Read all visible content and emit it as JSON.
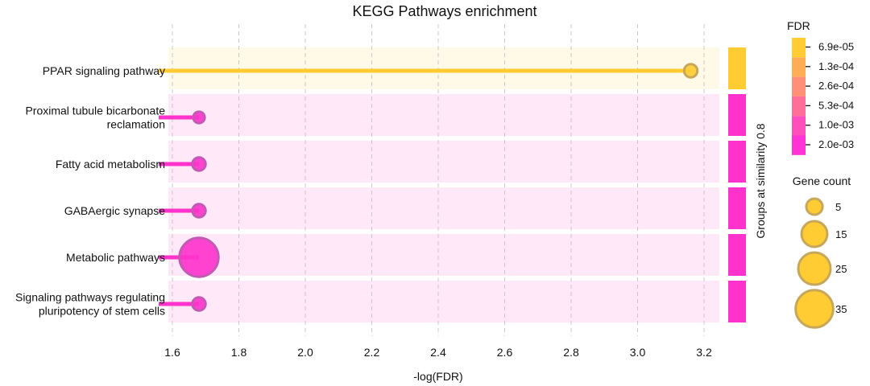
{
  "chart_data": {
    "type": "lollipop",
    "title": "KEGG Pathways enrichment",
    "xlabel": "-log(FDR)",
    "xlim": [
      1.6,
      3.25
    ],
    "xticks": [
      1.6,
      1.8,
      2.0,
      2.2,
      2.4,
      2.6,
      2.8,
      3.0,
      3.2
    ],
    "xtick_labels": [
      "1.6",
      "1.8",
      "2.0",
      "2.2",
      "2.4",
      "2.6",
      "2.8",
      "3.0",
      "3.2"
    ],
    "grid": "vertical dashed",
    "categories": [
      [
        "PPAR signaling pathway"
      ],
      [
        "Proximal tubule bicarbonate",
        "reclamation"
      ],
      [
        "Fatty acid metabolism"
      ],
      [
        "GABAergic synapse"
      ],
      [
        "Metabolic pathways"
      ],
      [
        "Signaling pathways regulating",
        "pluripotency of stem cells"
      ]
    ],
    "values": [
      3.16,
      1.68,
      1.68,
      1.68,
      1.68,
      1.68
    ],
    "gene_counts": [
      3,
      2,
      3,
      3,
      38,
      3
    ],
    "group_axis_label": "Groups at similarity 0.8",
    "point_colors": [
      "#ffcc33",
      "#ff33cc",
      "#ff33cc",
      "#ff33cc",
      "#ff33cc",
      "#ff33cc"
    ],
    "row_bg_colors": [
      "#fff9e8",
      "#ffe9f9",
      "#ffe9f9",
      "#ffe9f9",
      "#ffe9f9",
      "#ffe9f9"
    ],
    "group_colors": [
      "#ffcc33",
      "#ff33cc",
      "#ff33cc",
      "#ff33cc",
      "#ff33cc",
      "#ff33cc"
    ],
    "fdr_legend": {
      "title": "FDR",
      "labels": [
        "6.9e-05",
        "1.3e-04",
        "2.6e-04",
        "5.3e-04",
        "1.0e-03",
        "2.0e-03"
      ],
      "colors": [
        "#ffcc33",
        "#ffad55",
        "#ff8f77",
        "#ff6f99",
        "#ff4fbb",
        "#ff33d6"
      ]
    },
    "size_legend": {
      "title": "Gene count",
      "labels": [
        "5",
        "15",
        "25",
        "35"
      ],
      "values": [
        5,
        15,
        25,
        35
      ],
      "color": "#ffcc33"
    }
  }
}
